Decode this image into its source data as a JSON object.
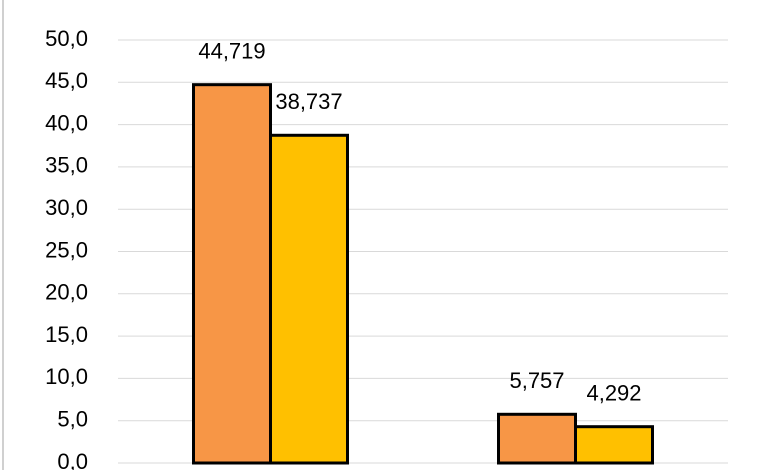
{
  "chart_data": {
    "type": "bar",
    "categories": [
      null,
      null
    ],
    "series": [
      {
        "color": "#F79646",
        "values": [
          44.719,
          5.757
        ],
        "value_labels": [
          "44,719",
          "5,757"
        ]
      },
      {
        "color": "#FFC000",
        "values": [
          38.737,
          4.292
        ],
        "value_labels": [
          "38,737",
          "4,292"
        ]
      }
    ],
    "ylim": [
      0,
      50
    ],
    "yticks": [
      {
        "value": 0,
        "label": "0,0"
      },
      {
        "value": 5,
        "label": "5,0"
      },
      {
        "value": 10,
        "label": "10,0"
      },
      {
        "value": 15,
        "label": "15,0"
      },
      {
        "value": 20,
        "label": "20,0"
      },
      {
        "value": 25,
        "label": "25,0"
      },
      {
        "value": 30,
        "label": "30,0"
      },
      {
        "value": 35,
        "label": "35,0"
      },
      {
        "value": 40,
        "label": "40,0"
      },
      {
        "value": 45,
        "label": "45,0"
      },
      {
        "value": 50,
        "label": "50,0"
      }
    ],
    "grid": true
  }
}
